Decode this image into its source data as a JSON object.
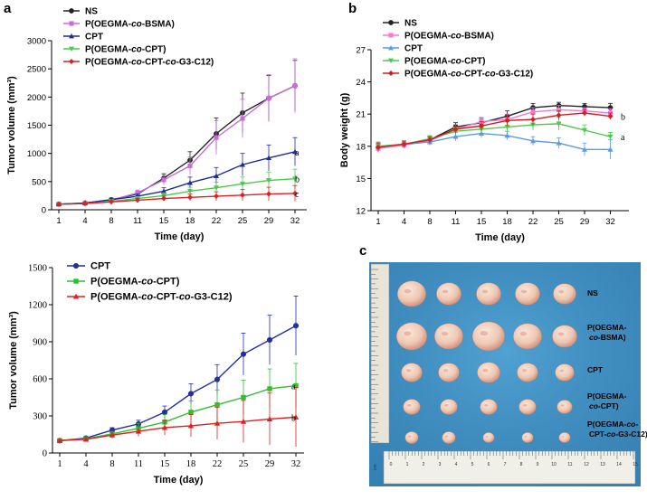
{
  "panels": {
    "a": "a",
    "b": "b",
    "c": "c"
  },
  "chart_data": [
    {
      "id": "a_top",
      "type": "line",
      "title": "",
      "xlabel": "Time (day)",
      "ylabel": "Tumor volume (mm³)",
      "categories": [
        "1",
        "4",
        "8",
        "11",
        "15",
        "18",
        "22",
        "25",
        "29",
        "32"
      ],
      "ylim": [
        0,
        3000
      ],
      "yticks": [
        "0",
        "500",
        "1000",
        "1500",
        "2000",
        "2500",
        "3000"
      ],
      "legend_position": "top-left",
      "series": [
        {
          "name": "NS",
          "color": "#222222",
          "marker": "circle",
          "values": [
            100,
            120,
            180,
            280,
            560,
            880,
            1350,
            1720,
            1980,
            2200
          ],
          "errors": [
            10,
            20,
            30,
            50,
            80,
            150,
            280,
            350,
            400,
            450
          ]
        },
        {
          "name": "P(OEGMA-co-BSMA)",
          "color": "#c86dd7",
          "marker": "square",
          "values": [
            100,
            115,
            170,
            300,
            530,
            780,
            1280,
            1620,
            1980,
            2200
          ],
          "errors": [
            10,
            20,
            30,
            50,
            90,
            160,
            300,
            340,
            420,
            480
          ]
        },
        {
          "name": "CPT",
          "color": "#1f2d9c",
          "marker": "triangle-up",
          "values": [
            100,
            120,
            180,
            240,
            330,
            480,
            600,
            800,
            920,
            1030
          ],
          "errors": [
            10,
            15,
            20,
            40,
            60,
            100,
            150,
            200,
            230,
            250
          ]
        },
        {
          "name": "P(OEGMA-co-CPT)",
          "color": "#4cc94c",
          "marker": "triangle-down",
          "values": [
            100,
            110,
            150,
            200,
            250,
            330,
            390,
            460,
            520,
            550
          ],
          "errors": [
            10,
            15,
            20,
            30,
            50,
            70,
            100,
            120,
            150,
            170
          ]
        },
        {
          "name": "P(OEGMA-co-CPT-co-G3-C12)",
          "color": "#e01f1f",
          "marker": "diamond",
          "values": [
            100,
            110,
            140,
            170,
            200,
            220,
            240,
            260,
            280,
            290
          ],
          "errors": [
            10,
            15,
            20,
            30,
            40,
            60,
            80,
            100,
            120,
            140
          ]
        }
      ],
      "annotations": [
        "a",
        "b",
        "c"
      ]
    },
    {
      "id": "b",
      "type": "line",
      "title": "",
      "xlabel": "Time (day)",
      "ylabel": "Body weight (g)",
      "categories": [
        "1",
        "4",
        "8",
        "11",
        "15",
        "18",
        "22",
        "25",
        "29",
        "32"
      ],
      "ylim": [
        12,
        27
      ],
      "yticks": [
        "12",
        "15",
        "18",
        "21",
        "24",
        "27"
      ],
      "legend_position": "top-left",
      "series": [
        {
          "name": "NS",
          "color": "#222222",
          "marker": "circle",
          "values": [
            17.9,
            18.2,
            18.6,
            19.8,
            20.2,
            20.8,
            21.6,
            21.8,
            21.7,
            21.6
          ],
          "errors": [
            0.4,
            0.3,
            0.3,
            0.4,
            0.4,
            0.5,
            0.4,
            0.3,
            0.3,
            0.4
          ]
        },
        {
          "name": "P(OEGMA-co-BSMA)",
          "color": "#f07ad8",
          "marker": "square",
          "values": [
            17.8,
            18.1,
            18.5,
            19.6,
            20.3,
            20.5,
            21.2,
            21.4,
            21.3,
            21.1
          ],
          "errors": [
            0.4,
            0.3,
            0.3,
            0.4,
            0.4,
            0.5,
            0.4,
            0.4,
            0.3,
            0.4
          ]
        },
        {
          "name": "CPT",
          "color": "#5a9ae8",
          "marker": "triangle-up",
          "values": [
            18.0,
            18.2,
            18.4,
            18.9,
            19.2,
            19.0,
            18.5,
            18.3,
            17.7,
            17.7
          ],
          "errors": [
            0.4,
            0.3,
            0.3,
            0.4,
            0.4,
            0.4,
            0.4,
            0.5,
            0.6,
            0.9
          ]
        },
        {
          "name": "P(OEGMA-co-CPT)",
          "color": "#4cc94c",
          "marker": "triangle-down",
          "values": [
            18.0,
            18.2,
            18.7,
            19.4,
            19.6,
            19.8,
            20.0,
            20.1,
            19.5,
            18.9
          ],
          "errors": [
            0.4,
            0.3,
            0.3,
            0.4,
            0.4,
            0.5,
            0.5,
            0.6,
            0.5,
            0.4
          ]
        },
        {
          "name": "P(OEGMA-co-CPT-co-G3-C12)",
          "color": "#d61d1d",
          "marker": "diamond",
          "values": [
            17.9,
            18.2,
            18.6,
            19.6,
            19.9,
            20.4,
            20.5,
            20.9,
            21.1,
            20.8
          ],
          "errors": [
            0.4,
            0.3,
            0.3,
            0.4,
            0.4,
            0.5,
            0.5,
            0.4,
            0.3,
            0.3
          ]
        }
      ],
      "annotations": [
        "a",
        "b"
      ]
    },
    {
      "id": "a_bottom",
      "type": "line",
      "title": "",
      "xlabel": "Time (day)",
      "ylabel": "Tumor volume (mm³)",
      "categories": [
        "1",
        "4",
        "8",
        "11",
        "15",
        "18",
        "22",
        "25",
        "29",
        "32"
      ],
      "ylim": [
        0,
        1500
      ],
      "yticks": [
        "0",
        "300",
        "600",
        "900",
        "1200",
        "1500"
      ],
      "legend_position": "top-left",
      "series": [
        {
          "name": "CPT",
          "color": "#1f2db0",
          "marker": "circle",
          "values": [
            100,
            120,
            185,
            235,
            330,
            480,
            595,
            800,
            915,
            1030
          ],
          "errors": [
            10,
            15,
            20,
            30,
            50,
            80,
            120,
            170,
            200,
            240
          ]
        },
        {
          "name": "P(OEGMA-co-CPT)",
          "color": "#2fbf2f",
          "marker": "square",
          "values": [
            100,
            115,
            155,
            200,
            250,
            330,
            390,
            450,
            520,
            545
          ],
          "errors": [
            10,
            15,
            20,
            40,
            60,
            90,
            120,
            140,
            160,
            180
          ]
        },
        {
          "name": "P(OEGMA-co-CPT-co-G3-C12)",
          "color": "#e01f1f",
          "marker": "triangle-up",
          "values": [
            100,
            110,
            145,
            175,
            205,
            220,
            240,
            255,
            275,
            290
          ],
          "errors": [
            10,
            15,
            25,
            40,
            60,
            90,
            130,
            170,
            210,
            240
          ]
        }
      ],
      "annotations": [
        "a",
        "b"
      ]
    }
  ],
  "photo": {
    "row_labels": [
      "NS",
      "P(OEGMA-\nco-BSMA)",
      "CPT",
      "P(OEGMA-\nco-CPT)",
      "P(OEGMA-co-\nCPT-co-G3-C12)"
    ],
    "ruler_numbers": [
      "0",
      "1",
      "2",
      "3",
      "4",
      "5",
      "6",
      "7",
      "8",
      "9",
      "10",
      "11",
      "12",
      "13",
      "14",
      "15"
    ],
    "ruler_side_label": "cm"
  }
}
